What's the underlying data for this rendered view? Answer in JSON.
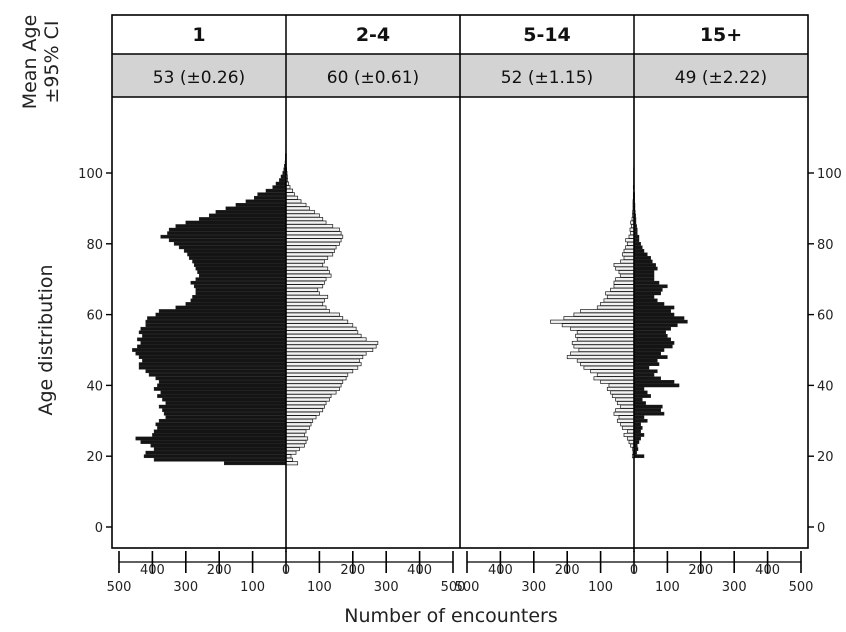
{
  "chart_data": {
    "type": "bar",
    "orientation": "horizontal",
    "layout": "two-sided population pyramids",
    "header_row_label": "Mean Age\n±95% CI",
    "ylabel": "Age distribution",
    "xlabel": "Number of encounters",
    "ylim": [
      -5,
      115
    ],
    "yticks": [
      0,
      20,
      40,
      60,
      80,
      100
    ],
    "xticks_left": [
      500,
      400,
      300,
      200,
      100,
      0
    ],
    "xticks_right": [
      0,
      100,
      200,
      300,
      400,
      500
    ],
    "xtick_labels_top": [
      "400",
      "200",
      "0",
      "200",
      "400"
    ],
    "xtick_labels_bottom": [
      "500",
      "300",
      "100",
      "100",
      "300",
      "500"
    ],
    "columns": [
      {
        "label": "1",
        "mean_ci": "53 (±0.26)"
      },
      {
        "label": "2-4",
        "mean_ci": "60 (±0.61)"
      },
      {
        "label": "5-14",
        "mean_ci": "52 (±1.15)"
      },
      {
        "label": "15+",
        "mean_ci": "49 (±2.22)"
      }
    ],
    "pyramids": [
      {
        "left_series": "1",
        "right_series": "2-4",
        "ages": [
          18,
          19,
          20,
          21,
          22,
          23,
          24,
          25,
          26,
          27,
          28,
          29,
          30,
          31,
          32,
          33,
          34,
          35,
          36,
          37,
          38,
          39,
          40,
          41,
          42,
          43,
          44,
          45,
          46,
          47,
          48,
          49,
          50,
          51,
          52,
          53,
          54,
          55,
          56,
          57,
          58,
          59,
          60,
          61,
          62,
          63,
          64,
          65,
          66,
          67,
          68,
          69,
          70,
          71,
          72,
          73,
          74,
          75,
          76,
          77,
          78,
          79,
          80,
          81,
          82,
          83,
          84,
          85,
          86,
          87,
          88,
          89,
          90,
          91,
          92,
          93,
          94,
          95,
          96,
          97,
          98,
          99,
          100,
          101,
          102,
          103,
          104,
          105,
          106,
          107,
          108,
          109
        ],
        "left_values": [
          185,
          395,
          425,
          420,
          395,
          405,
          435,
          450,
          400,
          395,
          385,
          390,
          380,
          360,
          365,
          370,
          380,
          360,
          370,
          385,
          375,
          395,
          385,
          380,
          390,
          410,
          420,
          440,
          440,
          430,
          440,
          450,
          460,
          445,
          435,
          445,
          430,
          440,
          435,
          420,
          420,
          415,
          390,
          380,
          330,
          300,
          285,
          280,
          270,
          270,
          275,
          285,
          270,
          260,
          265,
          270,
          275,
          280,
          290,
          295,
          305,
          320,
          335,
          350,
          375,
          355,
          350,
          330,
          300,
          260,
          230,
          210,
          180,
          150,
          120,
          95,
          85,
          60,
          40,
          30,
          20,
          15,
          10,
          7,
          5,
          3,
          2,
          2,
          1,
          1,
          1,
          1
        ],
        "right_values": [
          35,
          20,
          15,
          30,
          40,
          55,
          60,
          65,
          55,
          60,
          70,
          75,
          80,
          90,
          100,
          110,
          115,
          120,
          130,
          135,
          150,
          160,
          165,
          170,
          180,
          185,
          200,
          215,
          225,
          220,
          230,
          240,
          260,
          270,
          275,
          240,
          225,
          215,
          210,
          200,
          185,
          170,
          160,
          130,
          120,
          110,
          115,
          125,
          100,
          95,
          110,
          115,
          120,
          135,
          130,
          125,
          110,
          115,
          125,
          140,
          145,
          150,
          160,
          165,
          170,
          165,
          160,
          140,
          120,
          110,
          100,
          85,
          70,
          60,
          45,
          35,
          25,
          20,
          12,
          8,
          5,
          4,
          3,
          2,
          1,
          1,
          1,
          1,
          0,
          0,
          0,
          0
        ]
      },
      {
        "left_series": "5-14",
        "right_series": "15+",
        "ages": [
          20,
          21,
          22,
          23,
          24,
          25,
          26,
          27,
          28,
          29,
          30,
          31,
          32,
          33,
          34,
          35,
          36,
          37,
          38,
          39,
          40,
          41,
          42,
          43,
          44,
          45,
          46,
          47,
          48,
          49,
          50,
          51,
          52,
          53,
          54,
          55,
          56,
          57,
          58,
          59,
          60,
          61,
          62,
          63,
          64,
          65,
          66,
          67,
          68,
          69,
          70,
          71,
          72,
          73,
          74,
          75,
          76,
          77,
          78,
          79,
          80,
          81,
          82,
          83,
          84,
          85,
          86,
          87,
          88,
          89,
          90,
          91,
          92,
          93,
          94,
          95,
          96,
          97,
          98,
          99,
          100,
          101
        ],
        "left_values": [
          5,
          3,
          4,
          10,
          15,
          20,
          30,
          20,
          35,
          40,
          50,
          45,
          60,
          55,
          40,
          50,
          55,
          65,
          70,
          80,
          75,
          100,
          120,
          110,
          130,
          150,
          160,
          170,
          200,
          190,
          165,
          180,
          185,
          170,
          175,
          170,
          190,
          215,
          250,
          210,
          180,
          160,
          110,
          100,
          90,
          80,
          85,
          70,
          60,
          60,
          55,
          40,
          45,
          55,
          60,
          40,
          30,
          35,
          30,
          25,
          20,
          25,
          15,
          10,
          12,
          8,
          10,
          6,
          5,
          4,
          3,
          3,
          3,
          2,
          2,
          1,
          2,
          1,
          1,
          1,
          1,
          1
        ],
        "right_values": [
          30,
          8,
          12,
          10,
          15,
          20,
          30,
          20,
          25,
          20,
          40,
          30,
          90,
          80,
          85,
          35,
          25,
          50,
          40,
          30,
          135,
          120,
          80,
          60,
          70,
          45,
          75,
          70,
          100,
          80,
          90,
          115,
          120,
          110,
          100,
          95,
          110,
          130,
          160,
          150,
          120,
          110,
          120,
          90,
          70,
          60,
          80,
          85,
          100,
          75,
          60,
          60,
          60,
          70,
          65,
          55,
          50,
          40,
          30,
          25,
          20,
          15,
          15,
          10,
          10,
          8,
          6,
          6,
          5,
          4,
          3,
          3,
          2,
          2,
          2,
          1,
          1,
          1,
          1,
          1,
          1,
          1
        ]
      }
    ]
  }
}
